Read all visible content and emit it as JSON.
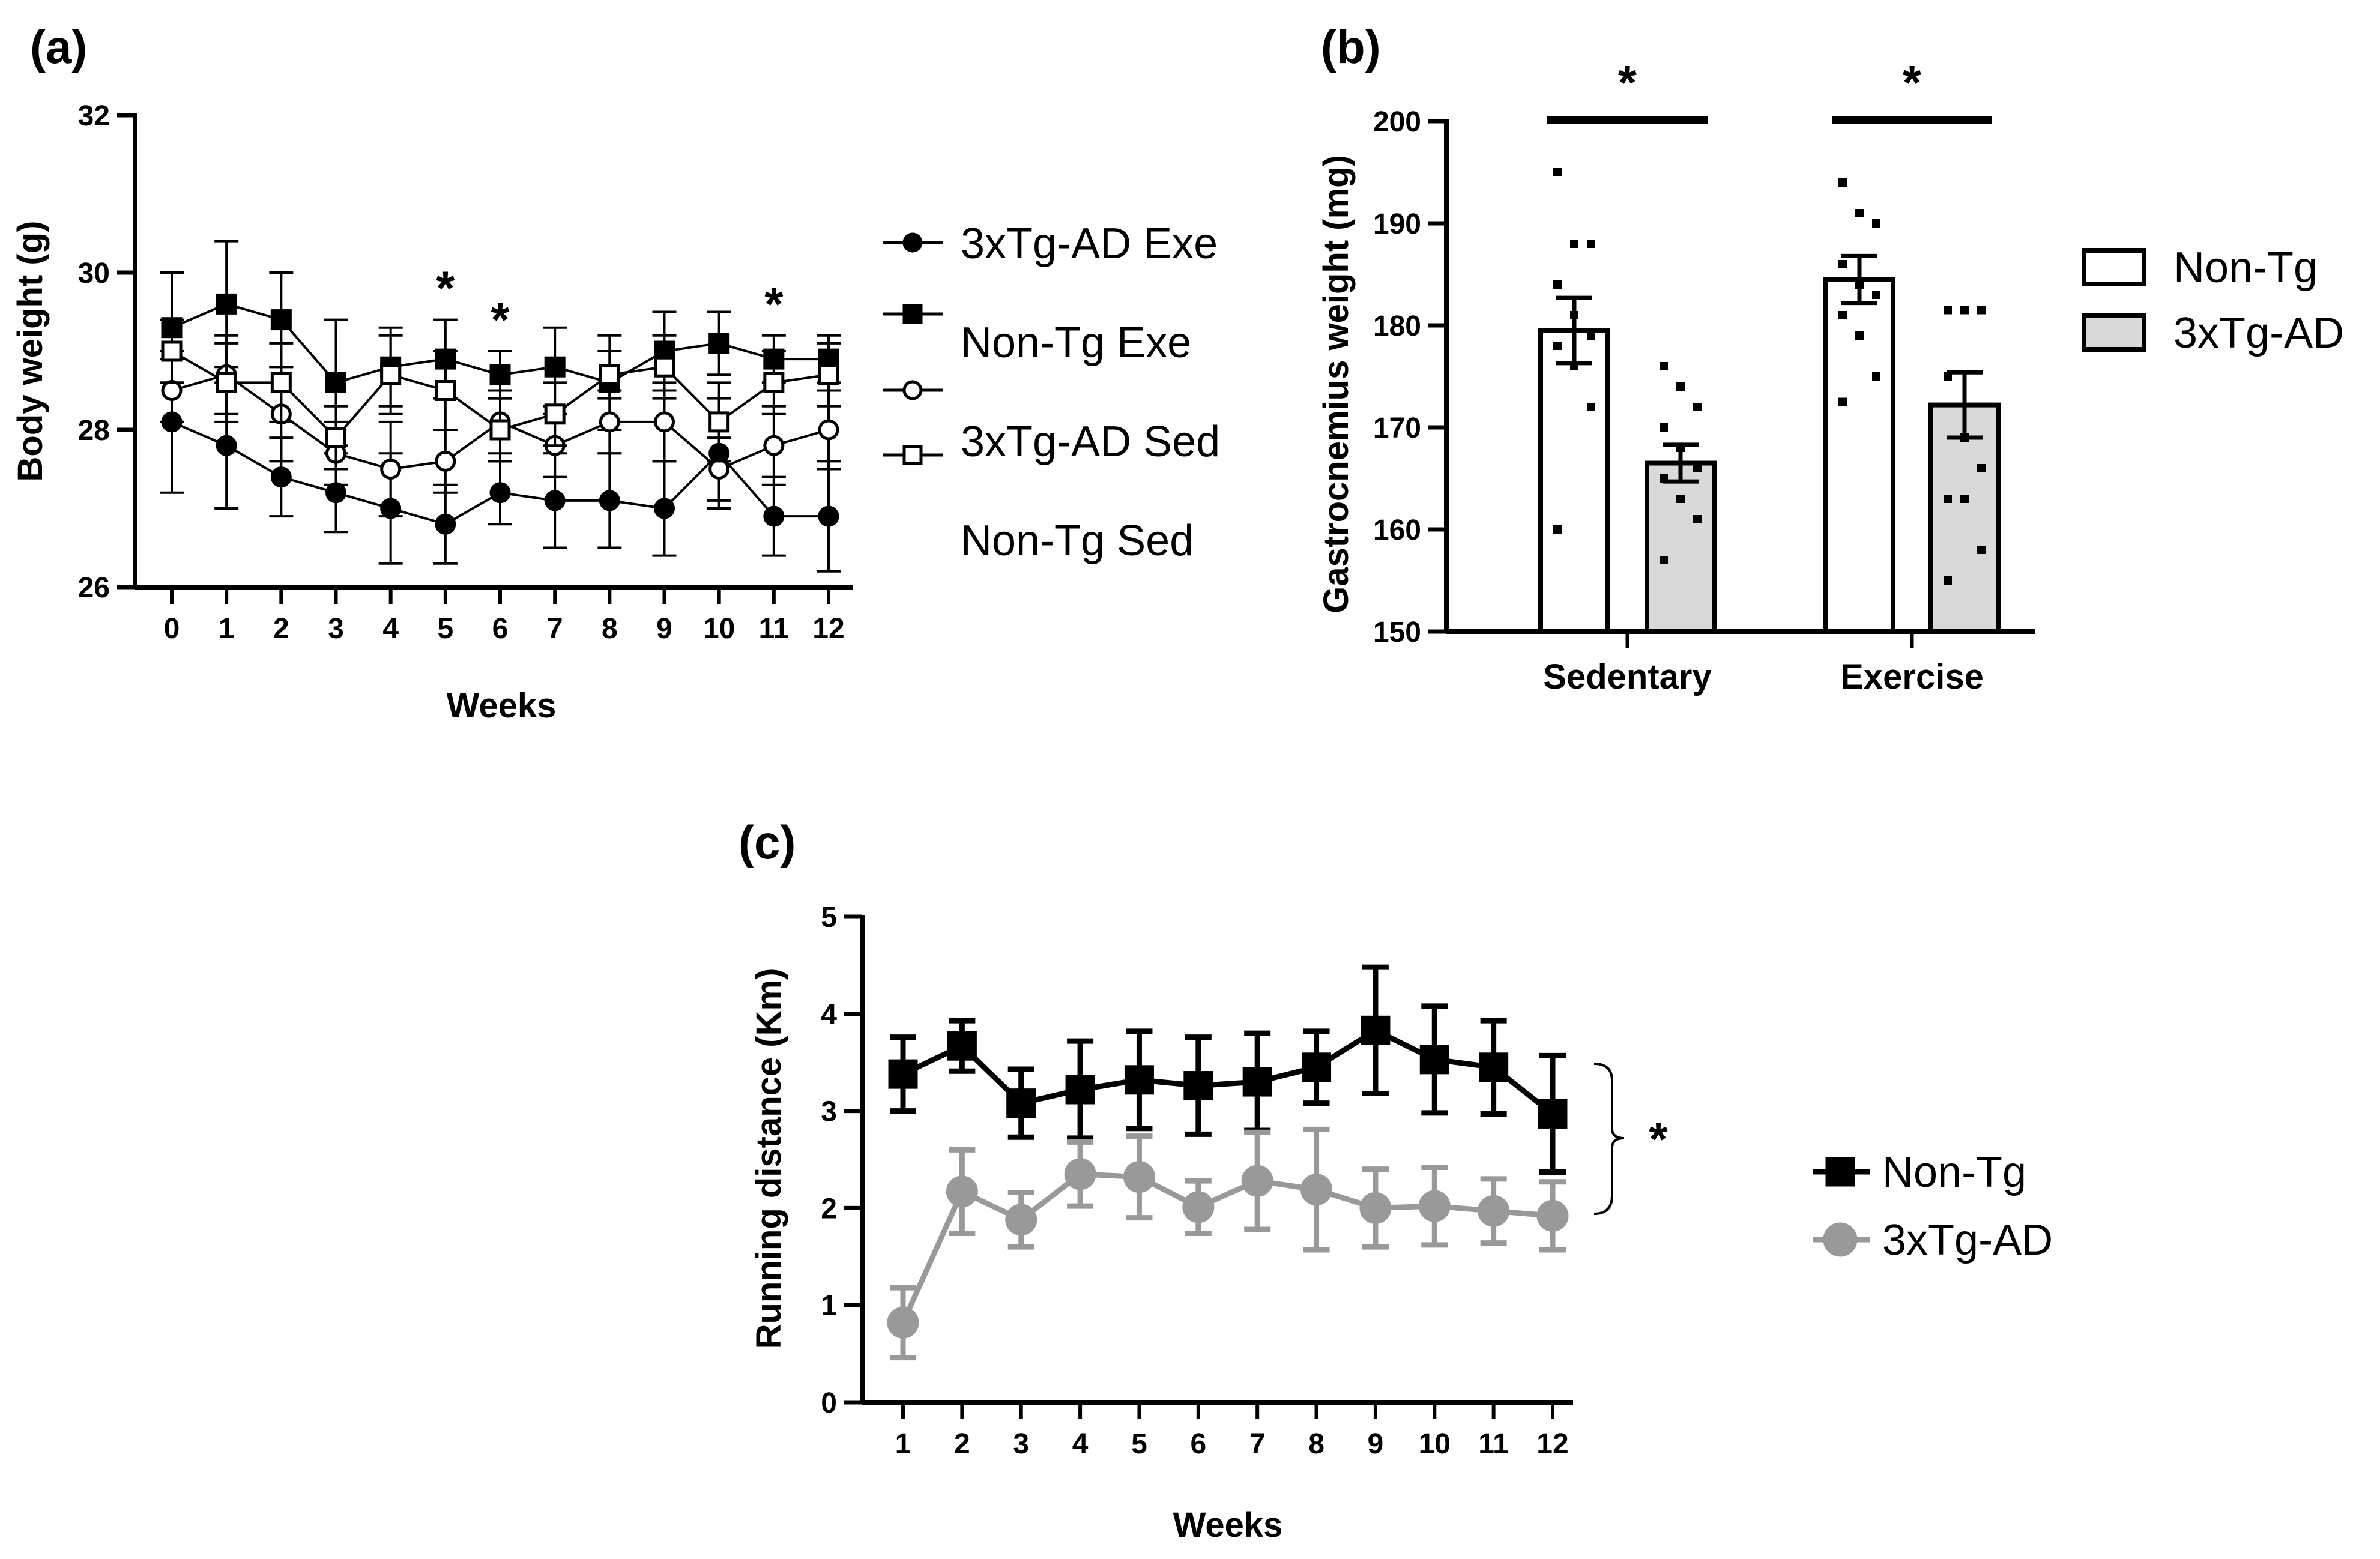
{
  "chart_data": [
    {
      "panel": "(a)",
      "type": "line",
      "xlabel": "Weeks",
      "ylabel": "Body weight (g)",
      "ylim": [
        26,
        32
      ],
      "yticks": [
        26,
        28,
        30,
        32
      ],
      "x": [
        0,
        1,
        2,
        3,
        4,
        5,
        6,
        7,
        8,
        9,
        10,
        11,
        12
      ],
      "series": [
        {
          "name": "3xTg-AD Exe",
          "marker": "filled-circle",
          "values": [
            28.1,
            27.8,
            27.4,
            27.2,
            27.0,
            26.8,
            27.2,
            27.1,
            27.1,
            27.0,
            27.7,
            26.9,
            26.9
          ],
          "err": [
            0.9,
            0.8,
            0.5,
            0.5,
            0.7,
            0.5,
            0.4,
            0.6,
            0.6,
            0.6,
            0.7,
            0.5,
            0.7
          ]
        },
        {
          "name": "Non-Tg Exe",
          "marker": "filled-square",
          "values": [
            29.3,
            29.6,
            29.4,
            28.6,
            28.8,
            28.9,
            28.7,
            28.8,
            28.6,
            29.0,
            29.1,
            28.9,
            28.9
          ],
          "err": [
            0.7,
            0.8,
            0.6,
            0.8,
            0.5,
            0.5,
            0.3,
            0.5,
            0.6,
            0.5,
            0.4,
            0.3,
            0.3
          ]
        },
        {
          "name": "3xTg-AD Sed",
          "marker": "open-circle",
          "values": [
            28.5,
            28.7,
            28.2,
            27.7,
            27.5,
            27.6,
            28.1,
            27.8,
            28.1,
            28.1,
            27.5,
            27.8,
            28.0
          ],
          "err": [
            0.4,
            0.5,
            0.6,
            0.4,
            0.6,
            0.4,
            0.4,
            0.4,
            0.4,
            0.5,
            0.4,
            0.5,
            0.5
          ]
        },
        {
          "name": "Non-Tg Sed",
          "marker": "open-square",
          "values": [
            29.0,
            28.6,
            28.6,
            27.9,
            28.7,
            28.5,
            28.0,
            28.2,
            28.7,
            28.8,
            28.1,
            28.6,
            28.7
          ],
          "err": [
            0.4,
            0.5,
            0.5,
            0.4,
            0.5,
            0.5,
            0.4,
            0.4,
            0.3,
            0.4,
            0.5,
            0.4,
            0.4
          ]
        }
      ],
      "significance": [
        {
          "x": 5,
          "label": "*"
        },
        {
          "x": 6,
          "label": "*"
        },
        {
          "x": 11,
          "label": "*"
        }
      ]
    },
    {
      "panel": "(b)",
      "type": "bar",
      "ylabel": "Gastrocnemius weight (mg)",
      "ylim": [
        150,
        200
      ],
      "yticks": [
        150,
        160,
        170,
        180,
        190,
        200
      ],
      "categories": [
        "Sedentary",
        "Exercise"
      ],
      "series": [
        {
          "name": "Non-Tg",
          "color": "#ffffff",
          "values": [
            179.5,
            184.5
          ],
          "err": [
            3.2,
            2.3
          ],
          "points": [
            [
              195,
              188,
              188,
              184,
              181,
              179,
              178,
              176,
              172,
              160
            ],
            [
              194,
              191,
              190,
              186,
              184,
              183,
              181,
              179,
              175,
              172.5
            ]
          ]
        },
        {
          "name": "3xTg-AD",
          "color": "#d9d9d9",
          "values": [
            166.5,
            172.2
          ],
          "err": [
            1.8,
            3.2
          ],
          "points": [
            [
              176,
              174,
              172,
              170,
              168,
              166,
              165,
              163,
              161,
              157
            ],
            [
              181.5,
              181.5,
              181.5,
              175,
              169,
              166,
              163,
              163,
              158,
              155
            ]
          ]
        }
      ],
      "significance": [
        {
          "category": "Sedentary",
          "label": "*"
        },
        {
          "category": "Exercise",
          "label": "*"
        }
      ]
    },
    {
      "panel": "(c)",
      "type": "line",
      "xlabel": "Weeks",
      "ylabel": "Running distance (Km)",
      "ylim": [
        0,
        5
      ],
      "yticks": [
        0,
        1,
        2,
        3,
        4,
        5
      ],
      "x": [
        1,
        2,
        3,
        4,
        5,
        6,
        7,
        8,
        9,
        10,
        11,
        12
      ],
      "series": [
        {
          "name": "Non-Tg",
          "color": "#000000",
          "values": [
            3.38,
            3.67,
            3.08,
            3.22,
            3.32,
            3.26,
            3.3,
            3.45,
            3.83,
            3.53,
            3.45,
            2.97
          ],
          "err": [
            0.38,
            0.26,
            0.35,
            0.5,
            0.5,
            0.5,
            0.5,
            0.37,
            0.65,
            0.55,
            0.48,
            0.6
          ]
        },
        {
          "name": "3xTg-AD",
          "color": "#999999",
          "values": [
            0.82,
            2.17,
            1.88,
            2.35,
            2.32,
            2.01,
            2.28,
            2.19,
            2.0,
            2.02,
            1.97,
            1.92
          ],
          "err": [
            0.36,
            0.43,
            0.28,
            0.33,
            0.42,
            0.27,
            0.5,
            0.62,
            0.4,
            0.4,
            0.33,
            0.35
          ]
        }
      ],
      "significance": [
        {
          "label": "*"
        }
      ]
    }
  ]
}
